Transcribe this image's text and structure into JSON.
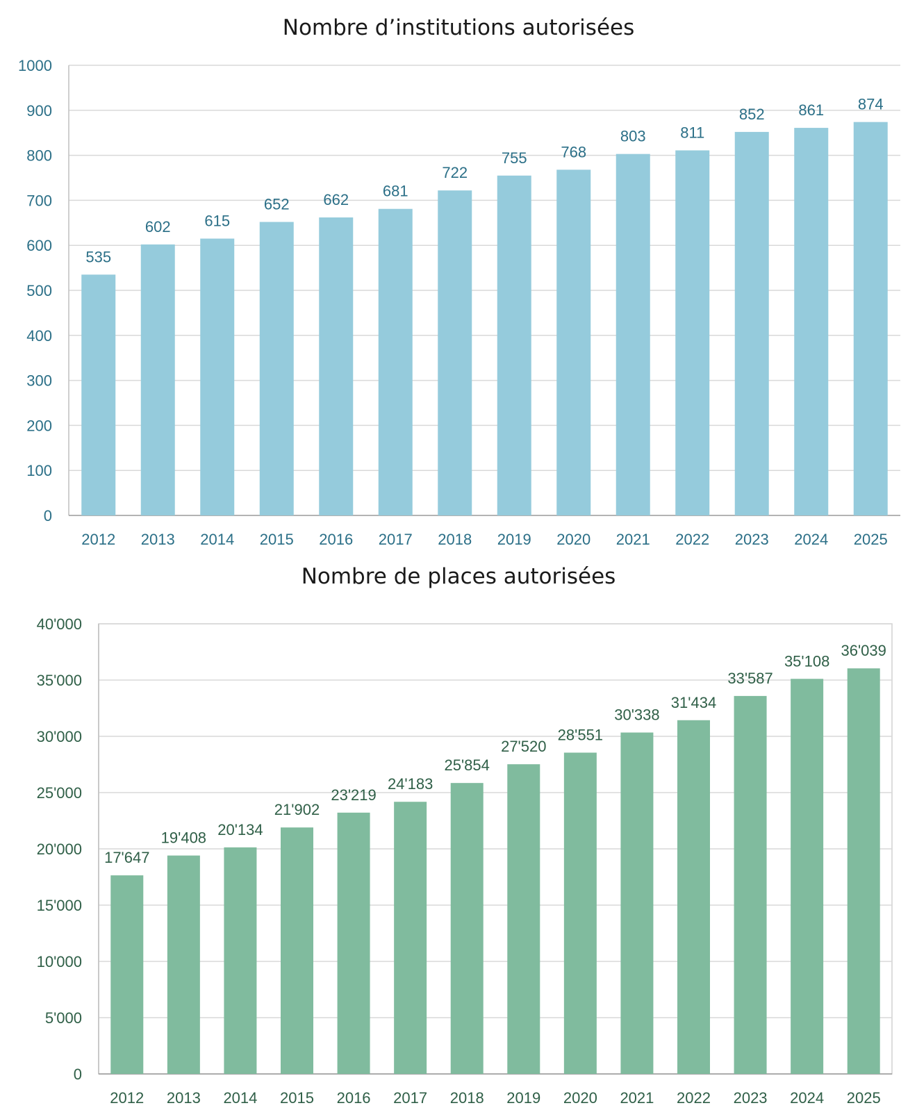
{
  "chart_data": [
    {
      "type": "bar",
      "title": "Nombre d’institutions autorisées",
      "categories": [
        "2012",
        "2013",
        "2014",
        "2015",
        "2016",
        "2017",
        "2018",
        "2019",
        "2020",
        "2021",
        "2022",
        "2023",
        "2024",
        "2025"
      ],
      "values": [
        535,
        602,
        615,
        652,
        662,
        681,
        722,
        755,
        768,
        803,
        811,
        852,
        861,
        874
      ],
      "data_labels": [
        "535",
        "602",
        "615",
        "652",
        "662",
        "681",
        "722",
        "755",
        "768",
        "803",
        "811",
        "852",
        "861",
        "874"
      ],
      "ylim": [
        0,
        1000
      ],
      "yticks": [
        0,
        100,
        200,
        300,
        400,
        500,
        600,
        700,
        800,
        900,
        1000
      ],
      "ytick_labels": [
        "0",
        "100",
        "200",
        "300",
        "400",
        "500",
        "600",
        "700",
        "800",
        "900",
        "1000"
      ],
      "xlabel": "",
      "ylabel": "",
      "grid": true,
      "bar_color": "#95cbdc",
      "text_color": "#2b6f87"
    },
    {
      "type": "bar",
      "title": "Nombre de places autorisées",
      "categories": [
        "2012",
        "2013",
        "2014",
        "2015",
        "2016",
        "2017",
        "2018",
        "2019",
        "2020",
        "2021",
        "2022",
        "2023",
        "2024",
        "2025"
      ],
      "values": [
        17647,
        19408,
        20134,
        21902,
        23219,
        24183,
        25854,
        27520,
        28551,
        30338,
        31434,
        33587,
        35108,
        36039
      ],
      "data_labels": [
        "17'647",
        "19'408",
        "20'134",
        "21'902",
        "23'219",
        "24'183",
        "25'854",
        "27'520",
        "28'551",
        "30'338",
        "31'434",
        "33'587",
        "35'108",
        "36'039"
      ],
      "ylim": [
        0,
        40000
      ],
      "yticks": [
        0,
        5000,
        10000,
        15000,
        20000,
        25000,
        30000,
        35000,
        40000
      ],
      "ytick_labels": [
        "0",
        "5'000",
        "10'000",
        "15'000",
        "20'000",
        "25'000",
        "30'000",
        "35'000",
        "40'000"
      ],
      "xlabel": "",
      "ylabel": "",
      "grid": true,
      "bar_color": "#80bb9e",
      "text_color": "#2f5f47"
    }
  ]
}
